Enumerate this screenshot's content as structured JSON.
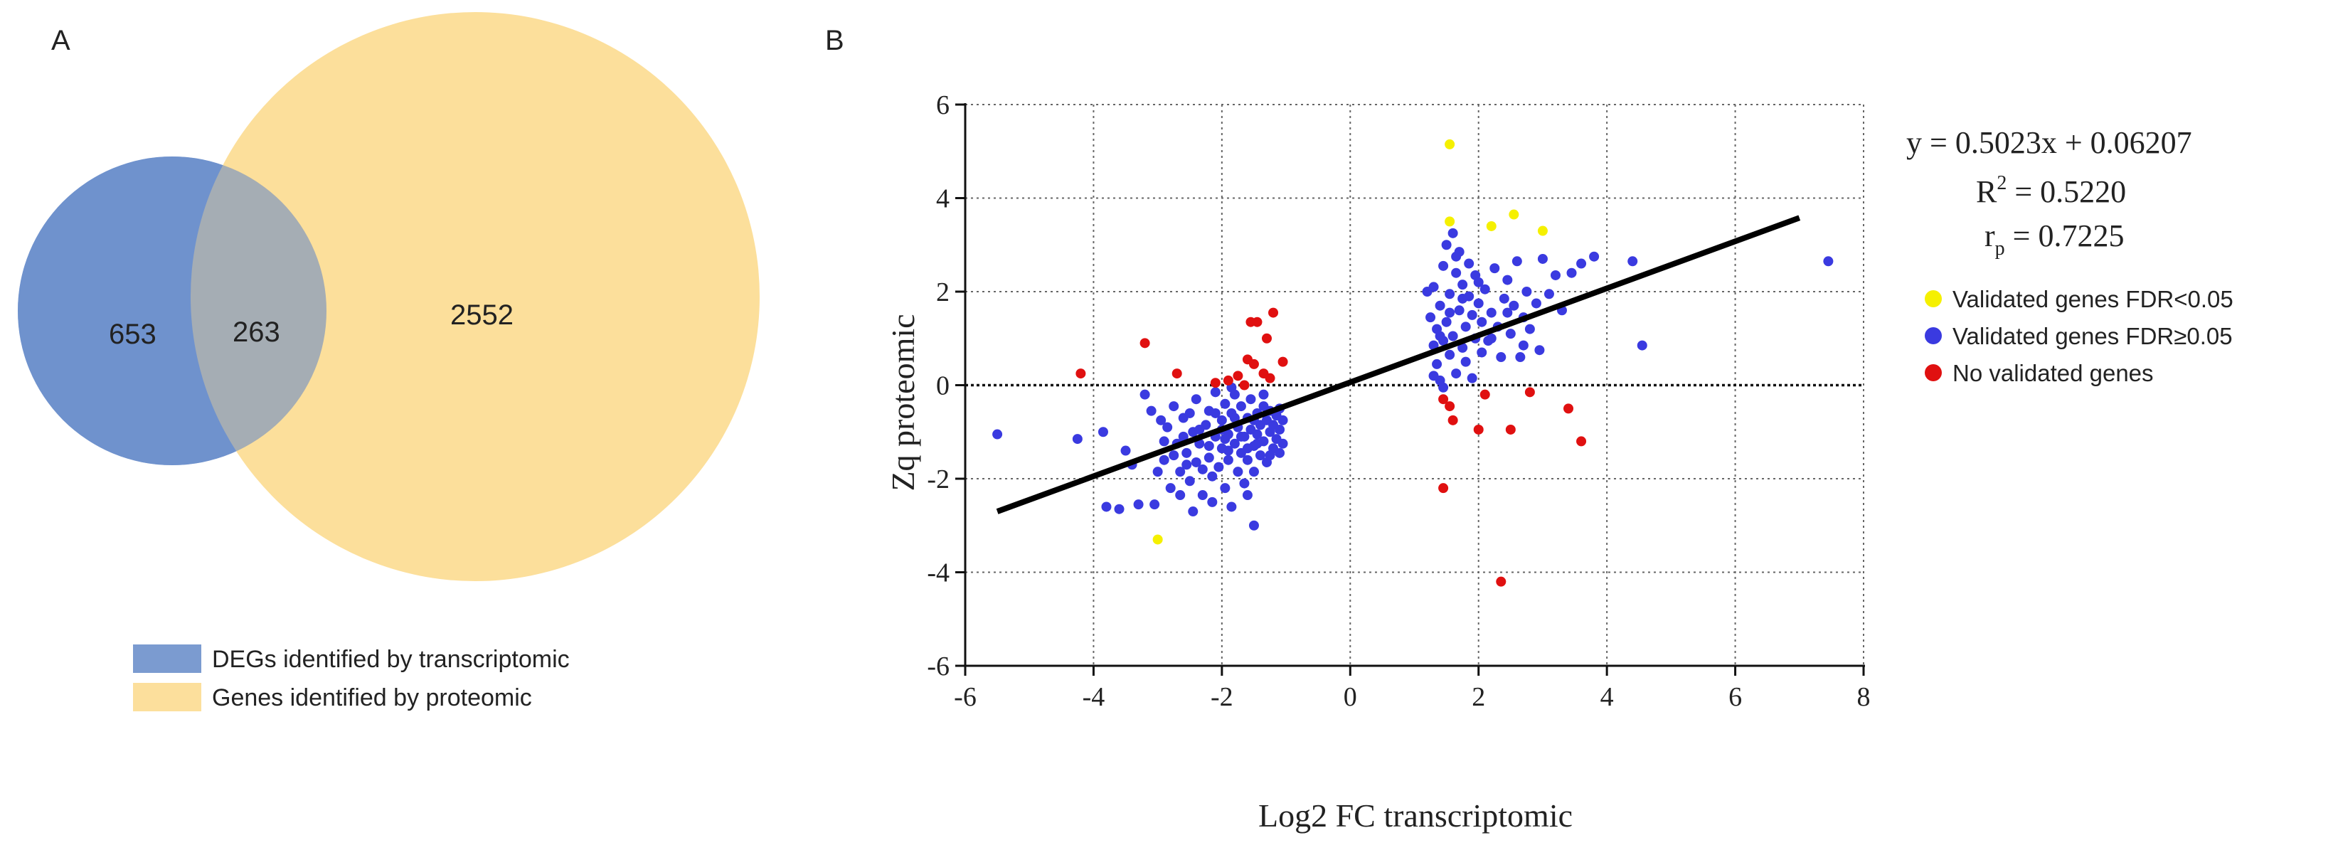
{
  "panel_a": {
    "label": "A",
    "venn": {
      "left_only": "653",
      "overlap": "263",
      "right_only": "2552",
      "left_color": "#6f92cd",
      "right_color": "#fcd98a"
    },
    "legend": [
      {
        "label": "DEGs identified by transcriptomic",
        "color": "#7b9bd0"
      },
      {
        "label": "Genes identified by proteomic",
        "color": "#fcdf9c"
      }
    ]
  },
  "panel_b": {
    "label": "B",
    "equation": {
      "line1": "y = 0.5023x + 0.06207",
      "r2_prefix": "R",
      "r2_sup": "2",
      "r2_value": " = 0.5220",
      "rp_prefix": "r",
      "rp_sub": "p",
      "rp_value": " = 0.7225"
    },
    "legend": [
      {
        "label": "Validated genes FDR<0.05",
        "color": "#f5f000"
      },
      {
        "label": "Validated genes FDR≥0.05",
        "color": "#3a3ae0"
      },
      {
        "label": "No validated genes",
        "color": "#e01010"
      }
    ]
  },
  "chart_data": {
    "type": "scatter",
    "title": "",
    "xlabel": "Log2 FC transcriptomic",
    "ylabel": "Zq proteomic",
    "xlim": [
      -6,
      8
    ],
    "ylim": [
      -6,
      6
    ],
    "xticks": [
      -6,
      -4,
      -2,
      0,
      2,
      4,
      6,
      8
    ],
    "yticks": [
      -6,
      -4,
      -2,
      0,
      2,
      4,
      6
    ],
    "grid": true,
    "fit_line": {
      "slope": 0.5023,
      "intercept": 0.06207,
      "x_range": [
        -5.5,
        7.0
      ]
    },
    "series": [
      {
        "name": "Validated genes FDR<0.05",
        "color": "#f5f000",
        "points": [
          [
            1.55,
            5.15
          ],
          [
            1.55,
            3.5
          ],
          [
            2.2,
            3.4
          ],
          [
            2.55,
            3.65
          ],
          [
            3.0,
            3.3
          ],
          [
            -3.0,
            -3.3
          ]
        ]
      },
      {
        "name": "No validated genes",
        "color": "#e01010",
        "points": [
          [
            -4.2,
            0.25
          ],
          [
            -3.2,
            0.9
          ],
          [
            -2.7,
            0.25
          ],
          [
            -2.1,
            0.05
          ],
          [
            -1.9,
            0.1
          ],
          [
            -1.75,
            0.2
          ],
          [
            -1.6,
            0.55
          ],
          [
            -1.55,
            1.35
          ],
          [
            -1.45,
            1.35
          ],
          [
            -1.3,
            1.0
          ],
          [
            -1.2,
            1.55
          ],
          [
            -1.05,
            0.5
          ],
          [
            -1.35,
            0.25
          ],
          [
            -1.25,
            0.15
          ],
          [
            -1.5,
            0.45
          ],
          [
            -1.65,
            0.0
          ],
          [
            1.45,
            -0.3
          ],
          [
            1.55,
            -0.45
          ],
          [
            1.6,
            -0.75
          ],
          [
            2.0,
            -0.95
          ],
          [
            2.1,
            -0.2
          ],
          [
            2.5,
            -0.95
          ],
          [
            2.8,
            -0.15
          ],
          [
            3.4,
            -0.5
          ],
          [
            3.6,
            -1.2
          ],
          [
            1.45,
            -2.2
          ],
          [
            2.35,
            -4.2
          ]
        ]
      },
      {
        "name": "Validated genes FDR≥0.05",
        "color": "#3a3ae0",
        "points": [
          [
            -5.5,
            -1.05
          ],
          [
            -4.25,
            -1.15
          ],
          [
            -3.85,
            -1.0
          ],
          [
            -3.8,
            -2.6
          ],
          [
            -3.6,
            -2.65
          ],
          [
            -3.5,
            -1.4
          ],
          [
            -3.3,
            -2.55
          ],
          [
            -3.2,
            -0.2
          ],
          [
            -3.05,
            -2.55
          ],
          [
            -3.1,
            -0.55
          ],
          [
            -2.9,
            -1.6
          ],
          [
            -2.85,
            -0.9
          ],
          [
            -2.8,
            -2.2
          ],
          [
            -2.75,
            -0.45
          ],
          [
            -2.7,
            -1.25
          ],
          [
            -2.65,
            -1.85
          ],
          [
            -2.6,
            -0.7
          ],
          [
            -2.55,
            -1.45
          ],
          [
            -2.5,
            -2.05
          ],
          [
            -2.45,
            -1.0
          ],
          [
            -2.4,
            -1.65
          ],
          [
            -2.4,
            -0.3
          ],
          [
            -2.35,
            -1.25
          ],
          [
            -2.3,
            -2.35
          ],
          [
            -2.25,
            -0.85
          ],
          [
            -2.2,
            -1.55
          ],
          [
            -2.2,
            -0.55
          ],
          [
            -2.15,
            -1.95
          ],
          [
            -2.1,
            -1.1
          ],
          [
            -2.1,
            -0.15
          ],
          [
            -2.05,
            -1.75
          ],
          [
            -2.0,
            -0.75
          ],
          [
            -2.0,
            -1.35
          ],
          [
            -1.95,
            -2.2
          ],
          [
            -1.95,
            -0.4
          ],
          [
            -1.9,
            -1.05
          ],
          [
            -1.9,
            -1.6
          ],
          [
            -1.85,
            -0.6
          ],
          [
            -1.85,
            -2.6
          ],
          [
            -1.8,
            -1.25
          ],
          [
            -1.8,
            -0.2
          ],
          [
            -1.75,
            -1.85
          ],
          [
            -1.75,
            -0.9
          ],
          [
            -1.7,
            -1.45
          ],
          [
            -1.7,
            -0.45
          ],
          [
            -1.65,
            -1.1
          ],
          [
            -1.65,
            -2.1
          ],
          [
            -1.6,
            -0.7
          ],
          [
            -1.6,
            -1.6
          ],
          [
            -1.55,
            -0.95
          ],
          [
            -1.55,
            -0.3
          ],
          [
            -1.5,
            -1.3
          ],
          [
            -1.5,
            -1.85
          ],
          [
            -1.45,
            -0.6
          ],
          [
            -1.45,
            -1.05
          ],
          [
            -1.4,
            -1.5
          ],
          [
            -1.4,
            -0.85
          ],
          [
            -1.35,
            -0.45
          ],
          [
            -1.35,
            -1.2
          ],
          [
            -1.3,
            -0.75
          ],
          [
            -1.3,
            -1.65
          ],
          [
            -1.25,
            -1.0
          ],
          [
            -1.25,
            -0.55
          ],
          [
            -1.2,
            -1.35
          ],
          [
            -1.2,
            -0.85
          ],
          [
            -1.15,
            -0.65
          ],
          [
            -1.15,
            -1.15
          ],
          [
            -1.1,
            -0.95
          ],
          [
            -1.1,
            -0.5
          ],
          [
            -1.05,
            -1.25
          ],
          [
            -1.05,
            -0.75
          ],
          [
            -2.5,
            -0.6
          ],
          [
            -2.6,
            -1.1
          ],
          [
            -2.75,
            -1.5
          ],
          [
            -2.3,
            -1.8
          ],
          [
            -2.2,
            -1.3
          ],
          [
            -2.0,
            -0.95
          ],
          [
            -1.9,
            -1.4
          ],
          [
            -1.8,
            -0.7
          ],
          [
            -1.7,
            -1.1
          ],
          [
            -1.6,
            -1.35
          ],
          [
            -1.5,
            -0.75
          ],
          [
            -1.45,
            -1.25
          ],
          [
            -1.6,
            -2.35
          ],
          [
            -1.5,
            -3.0
          ],
          [
            -2.9,
            -1.2
          ],
          [
            -3.0,
            -1.85
          ],
          [
            -2.45,
            -2.7
          ],
          [
            -2.55,
            -1.7
          ],
          [
            -2.35,
            -0.95
          ],
          [
            -2.15,
            -2.5
          ],
          [
            -1.95,
            -1.15
          ],
          [
            -1.85,
            -0.05
          ],
          [
            -2.1,
            -0.6
          ],
          [
            -1.35,
            -0.2
          ],
          [
            -1.25,
            -1.5
          ],
          [
            -1.1,
            -1.45
          ],
          [
            -2.65,
            -2.35
          ],
          [
            -3.4,
            -1.7
          ],
          [
            -2.95,
            -0.75
          ],
          [
            1.2,
            2.0
          ],
          [
            1.25,
            1.45
          ],
          [
            1.3,
            0.85
          ],
          [
            1.3,
            2.1
          ],
          [
            1.35,
            0.45
          ],
          [
            1.35,
            1.2
          ],
          [
            1.4,
            1.7
          ],
          [
            1.4,
            0.1
          ],
          [
            1.45,
            0.95
          ],
          [
            1.45,
            2.55
          ],
          [
            1.5,
            1.35
          ],
          [
            1.5,
            3.0
          ],
          [
            1.55,
            0.65
          ],
          [
            1.55,
            1.95
          ],
          [
            1.6,
            3.25
          ],
          [
            1.6,
            1.05
          ],
          [
            1.65,
            2.4
          ],
          [
            1.65,
            0.25
          ],
          [
            1.7,
            1.6
          ],
          [
            1.7,
            2.85
          ],
          [
            1.75,
            0.8
          ],
          [
            1.75,
            2.15
          ],
          [
            1.8,
            1.25
          ],
          [
            1.8,
            0.5
          ],
          [
            1.85,
            1.9
          ],
          [
            1.85,
            2.6
          ],
          [
            1.9,
            1.5
          ],
          [
            1.9,
            0.15
          ],
          [
            1.95,
            1.0
          ],
          [
            1.95,
            2.35
          ],
          [
            2.0,
            1.75
          ],
          [
            2.05,
            0.7
          ],
          [
            2.05,
            1.35
          ],
          [
            2.1,
            2.05
          ],
          [
            2.15,
            0.95
          ],
          [
            2.2,
            1.55
          ],
          [
            2.25,
            2.5
          ],
          [
            2.3,
            1.25
          ],
          [
            2.35,
            0.6
          ],
          [
            2.4,
            1.85
          ],
          [
            2.45,
            2.25
          ],
          [
            2.5,
            1.1
          ],
          [
            2.55,
            1.7
          ],
          [
            2.6,
            2.65
          ],
          [
            2.65,
            0.6
          ],
          [
            2.7,
            1.45
          ],
          [
            2.75,
            2.0
          ],
          [
            2.8,
            1.2
          ],
          [
            2.9,
            1.75
          ],
          [
            2.95,
            0.75
          ],
          [
            3.0,
            2.7
          ],
          [
            3.1,
            1.95
          ],
          [
            3.2,
            2.35
          ],
          [
            3.3,
            1.6
          ],
          [
            3.45,
            2.4
          ],
          [
            3.6,
            2.6
          ],
          [
            3.8,
            2.75
          ],
          [
            4.4,
            2.65
          ],
          [
            4.55,
            0.85
          ],
          [
            7.45,
            2.65
          ],
          [
            1.3,
            0.2
          ],
          [
            1.45,
            -0.05
          ],
          [
            1.55,
            1.55
          ],
          [
            1.75,
            1.85
          ],
          [
            2.0,
            2.2
          ],
          [
            2.2,
            1.0
          ],
          [
            2.45,
            1.55
          ],
          [
            2.7,
            0.85
          ],
          [
            1.65,
            2.75
          ],
          [
            1.4,
            1.05
          ]
        ]
      }
    ]
  }
}
